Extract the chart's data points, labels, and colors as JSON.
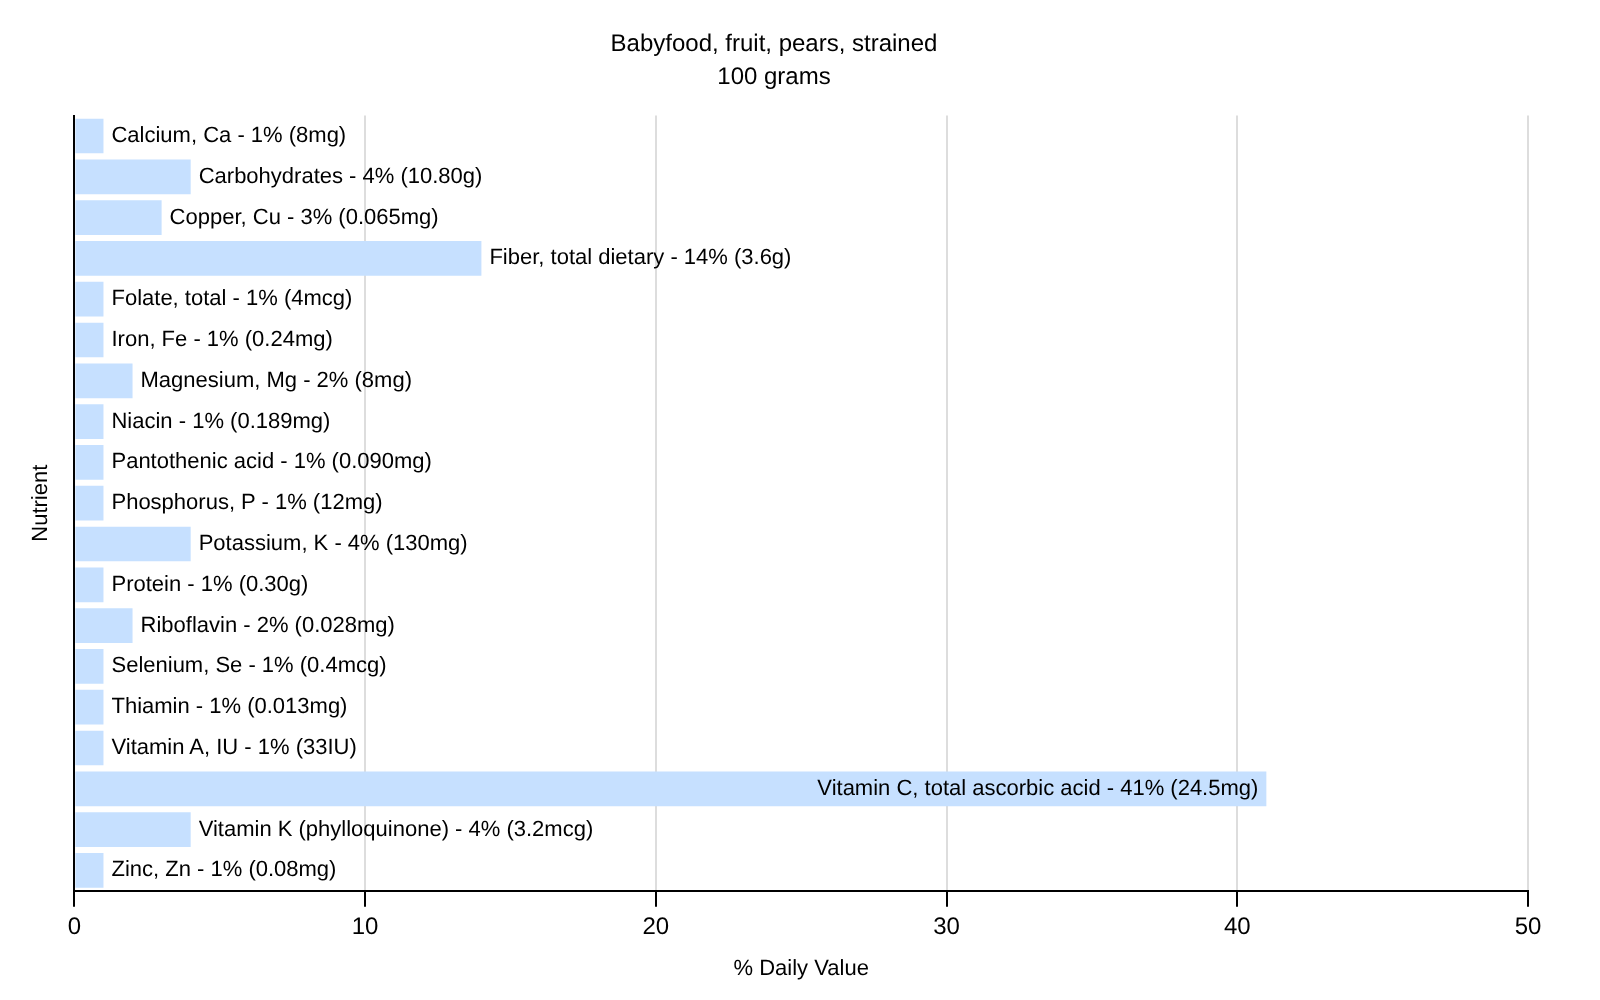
{
  "chart_data": {
    "type": "bar",
    "orientation": "horizontal",
    "title": "Babyfood, fruit, pears, strained",
    "subtitle": "100 grams",
    "xlabel": "% Daily Value",
    "ylabel": "Nutrient",
    "values": [
      1,
      4,
      3,
      14,
      1,
      1,
      2,
      1,
      1,
      1,
      4,
      1,
      2,
      1,
      1,
      1,
      41,
      4,
      1
    ],
    "categories": [
      "Calcium, Ca - 1% (8mg)",
      "Carbohydrates - 4% (10.80g)",
      "Copper, Cu - 3% (0.065mg)",
      "Fiber, total dietary - 14% (3.6g)",
      "Folate, total - 1% (4mcg)",
      "Iron, Fe - 1% (0.24mg)",
      "Magnesium, Mg - 2% (8mg)",
      "Niacin - 1% (0.189mg)",
      "Pantothenic acid - 1% (0.090mg)",
      "Phosphorus, P - 1% (12mg)",
      "Potassium, K - 4% (130mg)",
      "Protein - 1% (0.30g)",
      "Riboflavin - 2% (0.028mg)",
      "Selenium, Se - 1% (0.4mcg)",
      "Thiamin - 1% (0.013mg)",
      "Vitamin A, IU - 1% (33IU)",
      "Vitamin C, total ascorbic acid - 41% (24.5mg)",
      "Vitamin K (phylloquinone) - 4% (3.2mcg)",
      "Zinc, Zn - 1% (0.08mg)"
    ],
    "color": "#c6e0ff",
    "xlim": [
      0,
      50
    ],
    "xticks": [
      0,
      10,
      20,
      30,
      40,
      50
    ],
    "grid": "x",
    "legend": false,
    "tick_labels": "x"
  }
}
